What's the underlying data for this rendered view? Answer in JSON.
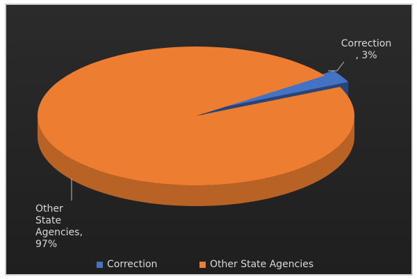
{
  "chart_data": {
    "type": "pie",
    "title": "",
    "style": "3d",
    "categories": [
      "Correction",
      "Other State Agencies"
    ],
    "values": [
      3,
      97
    ],
    "unit": "%",
    "data_labels": [
      {
        "lines": [
          "Correction",
          ", 3%"
        ]
      },
      {
        "lines": [
          "Other",
          "State",
          "Agencies,",
          "97%"
        ]
      }
    ],
    "colors": [
      "#4472c4",
      "#ed7d31"
    ],
    "legend": {
      "position": "bottom",
      "items": [
        {
          "label": "Correction",
          "color": "#4472c4"
        },
        {
          "label": "Other State Agencies",
          "color": "#ed7d31"
        }
      ]
    }
  }
}
